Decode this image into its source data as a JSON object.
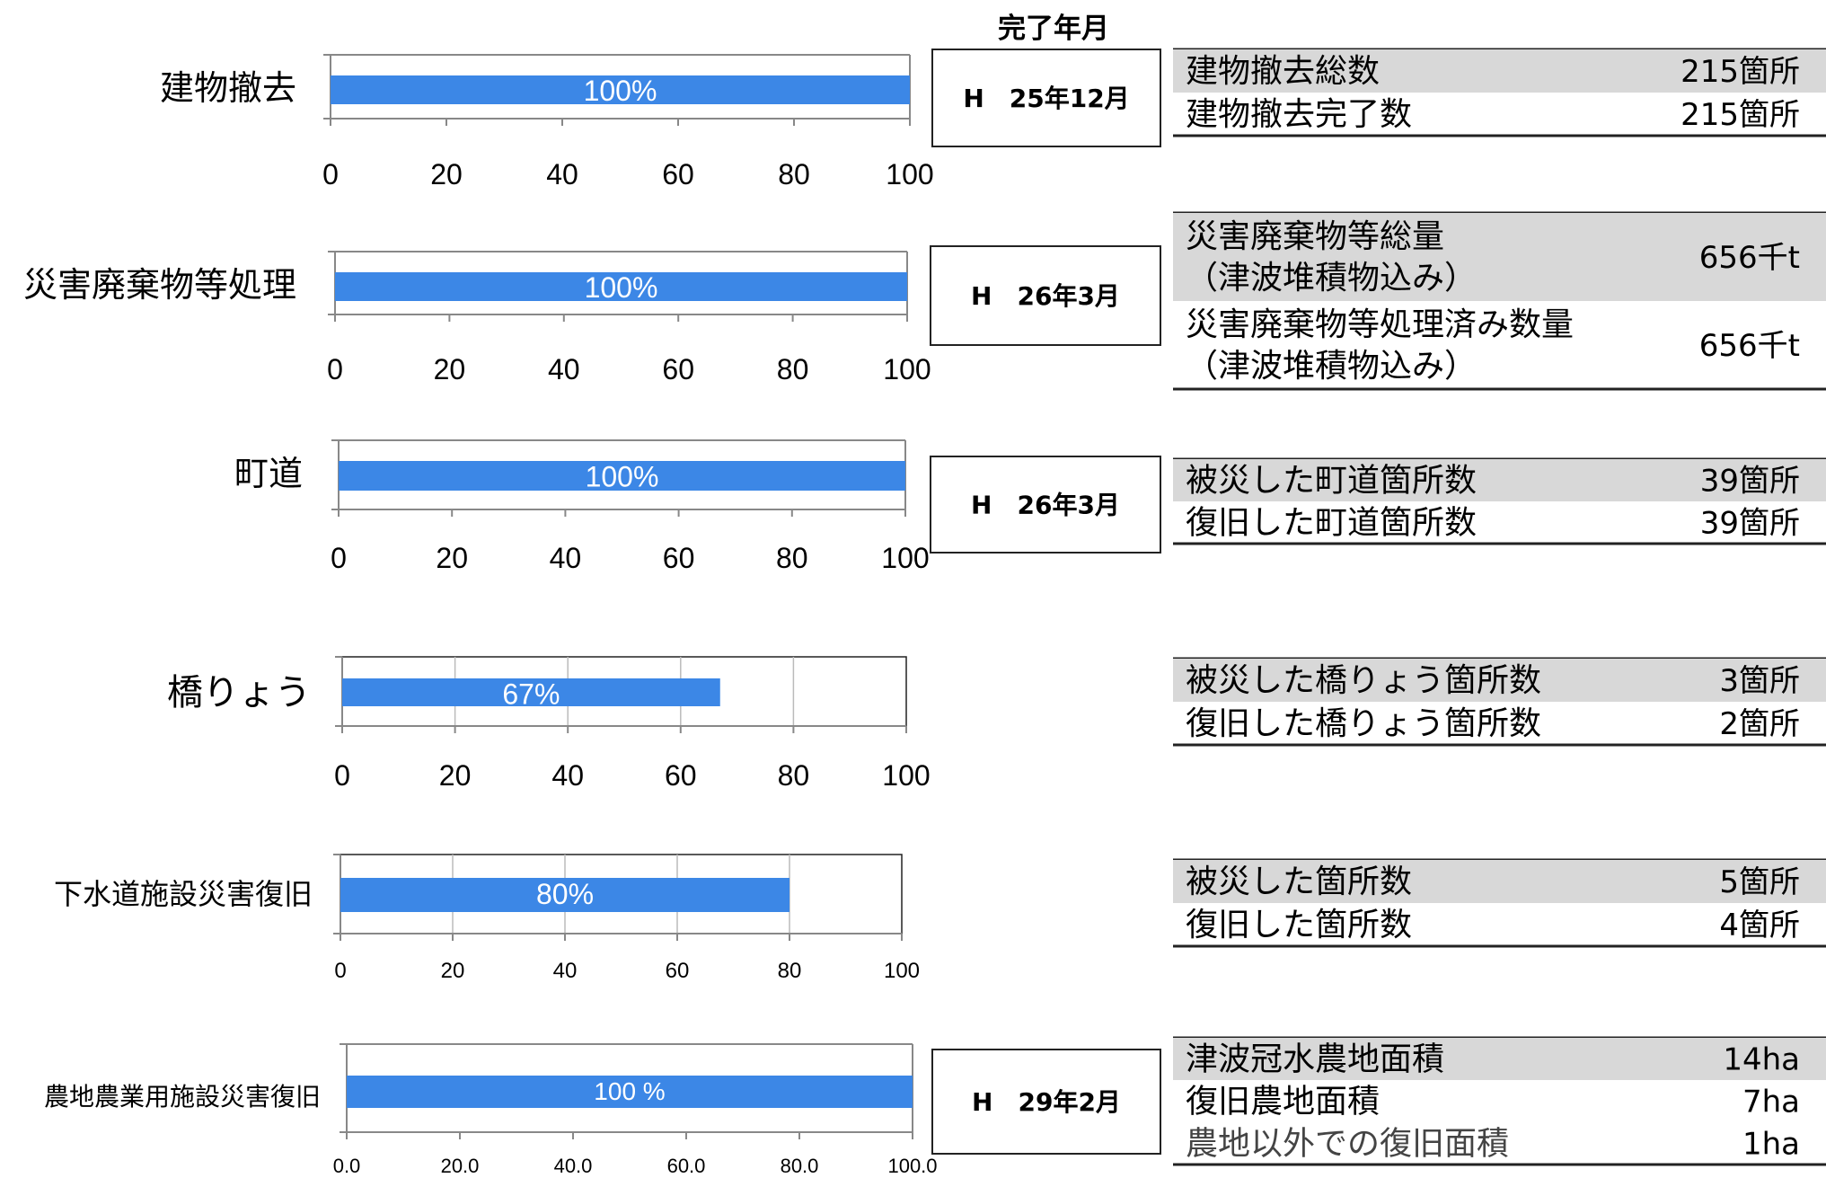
{
  "column_header": "完了年月",
  "colors": {
    "bar": "#3c87e6",
    "shaded_row": "#d8d8d8",
    "axis": "#888888",
    "grid": "#bbbbbb"
  },
  "chart_data": [
    {
      "type": "bar",
      "orientation": "horizontal",
      "category": "建物撤去",
      "value": 100,
      "data_label": "100%",
      "xlim": [
        0,
        100
      ],
      "ticks": [
        "0",
        "20",
        "40",
        "60",
        "80",
        "100"
      ],
      "grid": false,
      "completion_date": "H　25年12月",
      "stats": [
        {
          "label_lines": [
            "建物撤去総数"
          ],
          "value": "215箇所",
          "shaded": true
        },
        {
          "label_lines": [
            "建物撤去完了数"
          ],
          "value": "215箇所",
          "shaded": false
        }
      ]
    },
    {
      "type": "bar",
      "orientation": "horizontal",
      "category": "災害廃棄物等処理",
      "value": 100,
      "data_label": "100%",
      "xlim": [
        0,
        100
      ],
      "ticks": [
        "0",
        "20",
        "40",
        "60",
        "80",
        "100"
      ],
      "grid": false,
      "completion_date": "H　26年3月",
      "stats": [
        {
          "label_lines": [
            "災害廃棄物等総量",
            "（津波堆積物込み）"
          ],
          "value": "656千t",
          "shaded": true
        },
        {
          "label_lines": [
            "災害廃棄物等処理済み数量",
            "（津波堆積物込み）"
          ],
          "value": "656千t",
          "shaded": false
        }
      ]
    },
    {
      "type": "bar",
      "orientation": "horizontal",
      "category": "町道",
      "value": 100,
      "data_label": "100%",
      "xlim": [
        0,
        100
      ],
      "ticks": [
        "0",
        "20",
        "40",
        "60",
        "80",
        "100"
      ],
      "grid": false,
      "completion_date": "H　26年3月",
      "stats": [
        {
          "label_lines": [
            "被災した町道箇所数"
          ],
          "value": "39箇所",
          "shaded": true
        },
        {
          "label_lines": [
            "復旧した町道箇所数"
          ],
          "value": "39箇所",
          "shaded": false
        }
      ]
    },
    {
      "type": "bar",
      "orientation": "horizontal",
      "category": "橋りょう",
      "value": 67,
      "data_label": "67%",
      "xlim": [
        0,
        100
      ],
      "ticks": [
        "0",
        "20",
        "40",
        "60",
        "80",
        "100"
      ],
      "grid": true,
      "completion_date": "",
      "stats": [
        {
          "label_lines": [
            "被災した橋りょう箇所数"
          ],
          "value": "3箇所",
          "shaded": true
        },
        {
          "label_lines": [
            "復旧した橋りょう箇所数"
          ],
          "value": "2箇所",
          "shaded": false
        }
      ]
    },
    {
      "type": "bar",
      "orientation": "horizontal",
      "category": "下水道施設災害復旧",
      "value": 80,
      "data_label": "80%",
      "xlim": [
        0,
        100
      ],
      "ticks": [
        "0",
        "20",
        "40",
        "60",
        "80",
        "100"
      ],
      "grid": true,
      "completion_date": "",
      "stats": [
        {
          "label_lines": [
            "被災した箇所数"
          ],
          "value": "5箇所",
          "shaded": true
        },
        {
          "label_lines": [
            "復旧した箇所数"
          ],
          "value": "4箇所",
          "shaded": false
        }
      ]
    },
    {
      "type": "bar",
      "orientation": "horizontal",
      "category": "農地農業用施設災害復旧",
      "value": 100,
      "data_label": "100 %",
      "xlim": [
        0,
        100
      ],
      "ticks": [
        "0.0",
        "20.0",
        "40.0",
        "60.0",
        "80.0",
        "100.0"
      ],
      "grid": false,
      "completion_date": "H　29年2月",
      "stats": [
        {
          "label_lines": [
            "津波冠水農地面積"
          ],
          "value": "14ha",
          "shaded": true
        },
        {
          "label_lines": [
            "復旧農地面積"
          ],
          "value": "7ha",
          "shaded": false
        },
        {
          "label_lines": [
            "農地以外での復旧面積"
          ],
          "value": "1ha",
          "shaded": false
        }
      ]
    }
  ]
}
